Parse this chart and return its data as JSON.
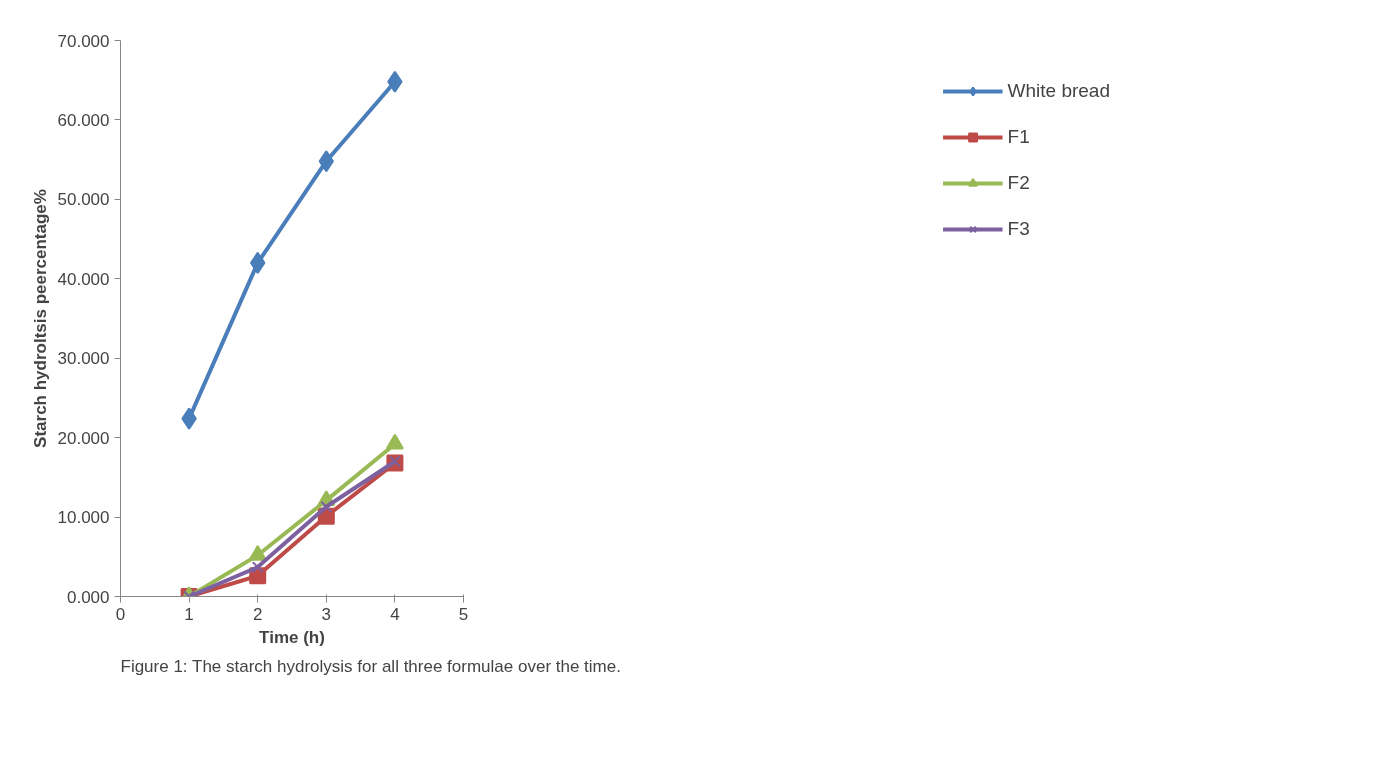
{
  "chart_data": {
    "type": "line",
    "xlabel": "Time (h)",
    "ylabel": "Starch hydroltsis peercentage%",
    "x": [
      1,
      2,
      3,
      4
    ],
    "series": [
      {
        "name": "White bread",
        "color": "#4a7ebb",
        "marker": "diamond",
        "values": [
          22.4,
          42.0,
          54.8,
          64.8
        ]
      },
      {
        "name": "F1",
        "color": "#be4b48",
        "marker": "square",
        "values": [
          0,
          2.6,
          10.1,
          16.8
        ]
      },
      {
        "name": "F2",
        "color": "#98b954",
        "marker": "triangle",
        "values": [
          0,
          5.2,
          12.1,
          19.2
        ]
      },
      {
        "name": "F3",
        "color": "#7d60a0",
        "marker": "x",
        "values": [
          0,
          3.7,
          11.3,
          17.0
        ]
      }
    ],
    "xlim": [
      0,
      5
    ],
    "xticks": [
      0,
      1,
      2,
      3,
      4,
      5
    ],
    "ylim": [
      0,
      70
    ],
    "yticks": [
      {
        "value": 0,
        "label": "0.000"
      },
      {
        "value": 10,
        "label": "10.000"
      },
      {
        "value": 20,
        "label": "20.000"
      },
      {
        "value": 30,
        "label": "30.000"
      },
      {
        "value": 40,
        "label": "40.000"
      },
      {
        "value": 50,
        "label": "50.000"
      },
      {
        "value": 60,
        "label": "60.000"
      },
      {
        "value": 70,
        "label": "70.000"
      }
    ],
    "grid": false,
    "legend": "right",
    "line_style": "solid",
    "annotations": [
      "Figure 1: The starch hydrolysis for all three formulae over the time."
    ]
  }
}
